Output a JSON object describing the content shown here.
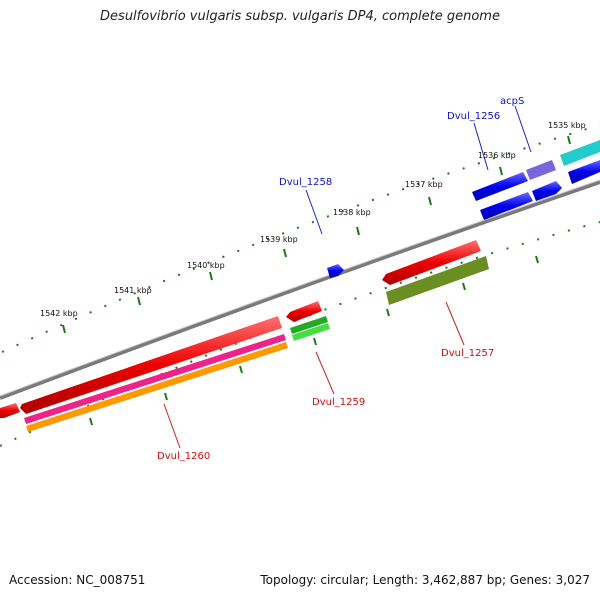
{
  "title": "Desulfovibrio vulgaris subsp. vulgaris DP4, complete genome",
  "footer": {
    "accession": "Accession: NC_008751",
    "topology": "Topology: circular; Length: 3,462,887 bp; Genes: 3,027"
  },
  "scale_labels": [
    "1535 kbp",
    "1536 kbp",
    "1537 kbp",
    "1538 kbp",
    "1539 kbp",
    "1540 kbp",
    "1541 kbp",
    "1542 kbp"
  ],
  "gene_labels": {
    "acpS": "acpS",
    "dvul_1256": "Dvul_1256",
    "dvul_1258": "Dvul_1258",
    "dvul_1257": "Dvul_1257",
    "dvul_1259": "Dvul_1259",
    "dvul_1260": "Dvul_1260"
  },
  "colors": {
    "backbone": "#7a7a7a",
    "ticks": "#1a7a1a",
    "cds_forward": "#0000ee",
    "cds_reverse": "#ee0000",
    "acpS": "#7766dd",
    "cyan_feature": "#22cccc",
    "green_feature": "#22aa22",
    "olive_feature": "#6b8e23",
    "pink_feature": "#ee2288",
    "orange_feature": "#ff9900"
  }
}
